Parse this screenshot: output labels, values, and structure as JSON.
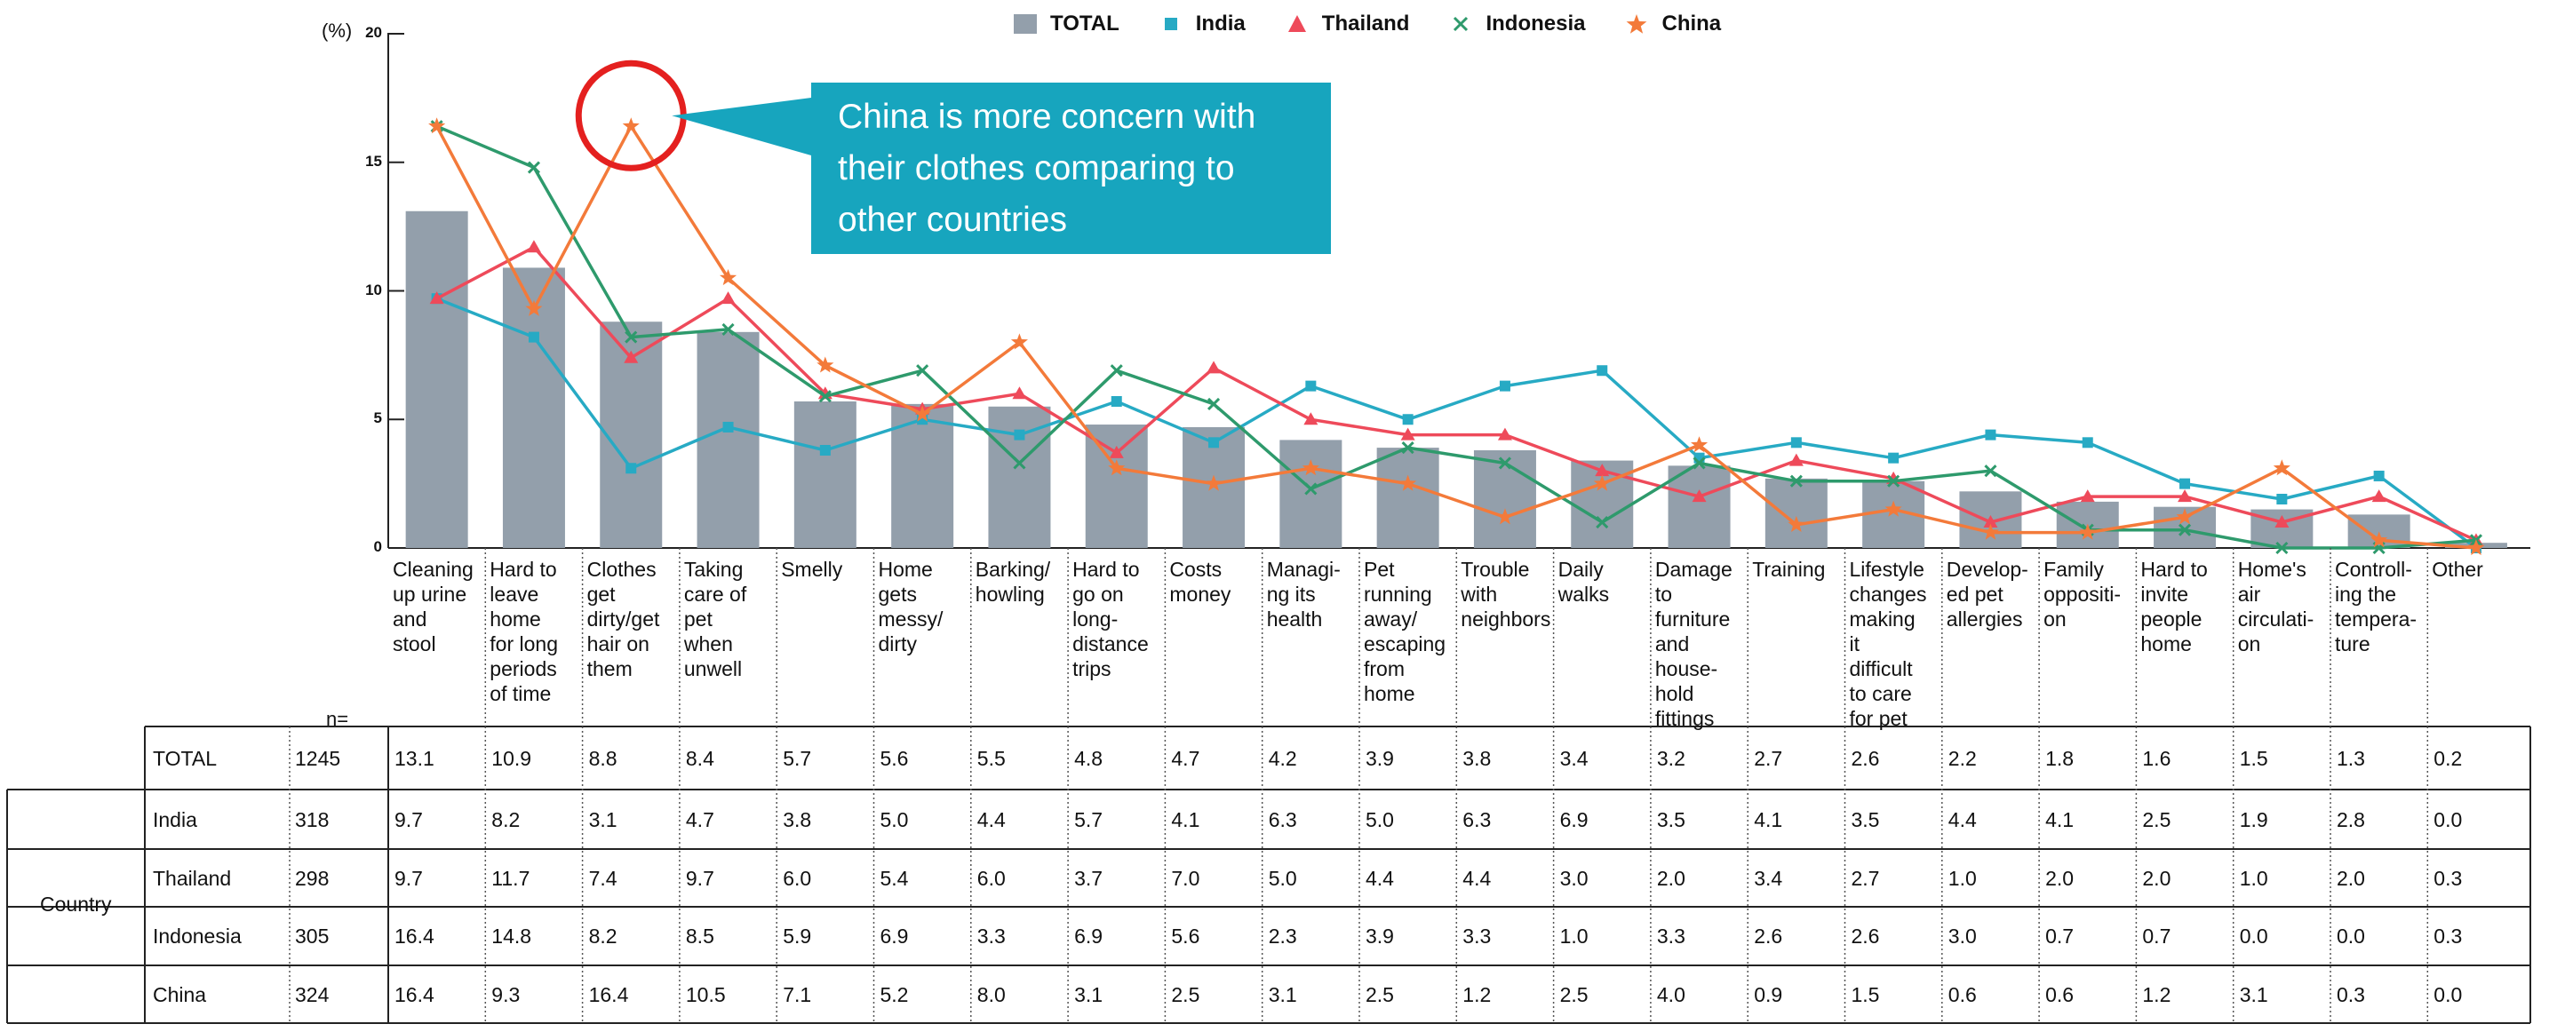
{
  "chart_data": {
    "type": "bar+line",
    "y_unit": "(%)",
    "yticks": [
      0,
      5,
      10,
      15,
      20
    ],
    "ylim": [
      0,
      20
    ],
    "categories": [
      "Cleaning up urine and stool",
      "Hard to leave home for long periods of time",
      "Clothes get dirty/get hair on them",
      "Taking care of pet when unwell",
      "Smelly",
      "Home gets messy/ dirty",
      "Barking/ howling",
      "Hard to go on long- distance trips",
      "Costs money",
      "Managi- ng its health",
      "Pet running away/ escaping from home",
      "Trouble with neighbors",
      "Daily walks",
      "Damage to furniture and house- hold fittings",
      "Training",
      "Lifestyle changes making it difficult to care for pet",
      "Develop- ed pet allergies",
      "Family oppositi- on",
      "Hard to invite people home",
      "Home's air circulati- on",
      "Controll- ing the tempera- ture",
      "Other"
    ],
    "category_lines": [
      [
        "Cleaning",
        "up urine",
        "and",
        "stool"
      ],
      [
        "Hard to",
        "leave",
        "home",
        "for long",
        "periods",
        "of time"
      ],
      [
        "Clothes",
        "get",
        "dirty/get",
        "hair on",
        "them"
      ],
      [
        "Taking",
        "care of",
        "pet",
        "when",
        "unwell"
      ],
      [
        "Smelly"
      ],
      [
        "Home",
        "gets",
        "messy/",
        "dirty"
      ],
      [
        "Barking/",
        "howling"
      ],
      [
        "Hard to",
        "go on",
        "long-",
        "distance",
        "trips"
      ],
      [
        "Costs",
        "money"
      ],
      [
        "Managi-",
        "ng its",
        "health"
      ],
      [
        "Pet",
        "running",
        "away/",
        "escaping",
        "from",
        "home"
      ],
      [
        "Trouble",
        "with",
        "neighbors"
      ],
      [
        "Daily",
        "walks"
      ],
      [
        "Damage",
        "to",
        "furniture",
        "and",
        "house-",
        "hold",
        "fittings"
      ],
      [
        "Training"
      ],
      [
        "Lifestyle",
        "changes",
        "making",
        "it",
        "difficult",
        "to care",
        "for pet"
      ],
      [
        "Develop-",
        "ed pet",
        "allergies"
      ],
      [
        "Family",
        "oppositi-",
        "on"
      ],
      [
        "Hard to",
        "invite",
        "people",
        "home"
      ],
      [
        "Home's",
        "air",
        "circulati-",
        "on"
      ],
      [
        "Controll-",
        "ing the",
        "tempera-",
        "ture"
      ],
      [
        "Other"
      ]
    ],
    "series": [
      {
        "name": "TOTAL",
        "kind": "bar",
        "color": "#939fab",
        "n": "1245",
        "values": [
          "13.1",
          "10.9",
          "8.8",
          "8.4",
          "5.7",
          "5.6",
          "5.5",
          "4.8",
          "4.7",
          "4.2",
          "3.9",
          "3.8",
          "3.4",
          "3.2",
          "2.7",
          "2.6",
          "2.2",
          "1.8",
          "1.6",
          "1.5",
          "1.3",
          "0.2"
        ]
      },
      {
        "name": "India",
        "kind": "line",
        "marker": "square",
        "color": "#27aac4",
        "n": "318",
        "values": [
          "9.7",
          "8.2",
          "3.1",
          "4.7",
          "3.8",
          "5.0",
          "4.4",
          "5.7",
          "4.1",
          "6.3",
          "5.0",
          "6.3",
          "6.9",
          "3.5",
          "4.1",
          "3.5",
          "4.4",
          "4.1",
          "2.5",
          "1.9",
          "2.8",
          "0.0"
        ]
      },
      {
        "name": "Thailand",
        "kind": "line",
        "marker": "triangle",
        "color": "#ee4a5a",
        "n": "298",
        "values": [
          "9.7",
          "11.7",
          "7.4",
          "9.7",
          "6.0",
          "5.4",
          "6.0",
          "3.7",
          "7.0",
          "5.0",
          "4.4",
          "4.4",
          "3.0",
          "2.0",
          "3.4",
          "2.7",
          "1.0",
          "2.0",
          "2.0",
          "1.0",
          "2.0",
          "0.3"
        ]
      },
      {
        "name": "Indonesia",
        "kind": "line",
        "marker": "x",
        "color": "#2e9a6c",
        "n": "305",
        "values": [
          "16.4",
          "14.8",
          "8.2",
          "8.5",
          "5.9",
          "6.9",
          "3.3",
          "6.9",
          "5.6",
          "2.3",
          "3.9",
          "3.3",
          "1.0",
          "3.3",
          "2.6",
          "2.6",
          "3.0",
          "0.7",
          "0.7",
          "0.0",
          "0.0",
          "0.3"
        ]
      },
      {
        "name": "China",
        "kind": "line",
        "marker": "star",
        "color": "#f37a3a",
        "n": "324",
        "values": [
          "16.4",
          "9.3",
          "16.4",
          "10.5",
          "7.1",
          "5.2",
          "8.0",
          "3.1",
          "2.5",
          "3.1",
          "2.5",
          "1.2",
          "2.5",
          "4.0",
          "0.9",
          "1.5",
          "0.6",
          "0.6",
          "1.2",
          "3.1",
          "0.3",
          "0.0"
        ]
      }
    ],
    "legend_position": "top",
    "annotation": {
      "text": "China is more concern with their clothes comparing to other countries",
      "lines": [
        "China is more concern with",
        "their clothes comparing to",
        "other countries"
      ]
    }
  },
  "table": {
    "n_label": "n=",
    "group_label": "Country"
  }
}
